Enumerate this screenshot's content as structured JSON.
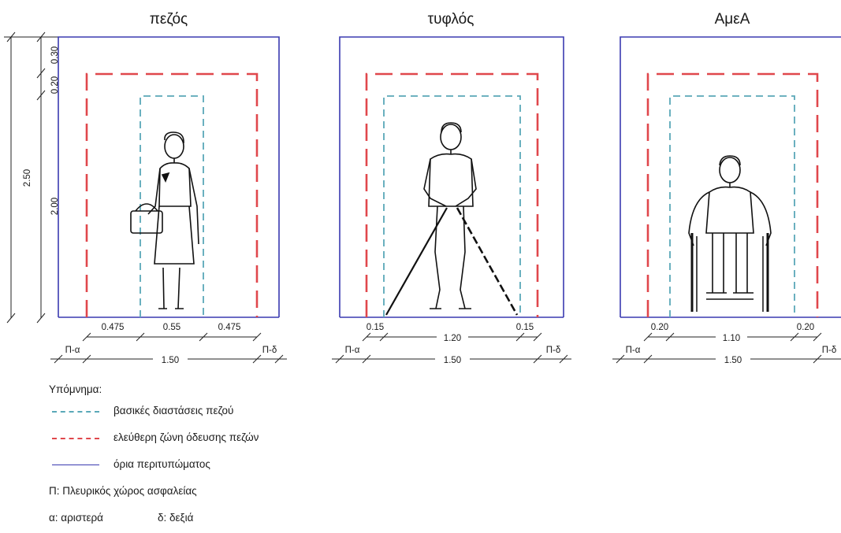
{
  "panels": [
    {
      "title": "πεζός",
      "upper_dims": [
        "0.475",
        "0.55",
        "0.475"
      ],
      "lower_left": "Π-α",
      "lower_total": "1.50",
      "lower_right": "Π-δ"
    },
    {
      "title": "τυφλός",
      "upper_dims": [
        "0.15",
        "1.20",
        "0.15"
      ],
      "lower_left": "Π-α",
      "lower_total": "1.50",
      "lower_right": "Π-δ"
    },
    {
      "title": "ΑμεΑ",
      "upper_dims": [
        "0.20",
        "1.10",
        "0.20"
      ],
      "lower_left": "Π-α",
      "lower_total": "1.50",
      "lower_right": "Π-δ"
    }
  ],
  "vertical_dims": {
    "outer_total": "2.50",
    "top_gap": "0.30",
    "mid_gap": "0.20",
    "inner_height": "2.00"
  },
  "legend": {
    "heading": "Υπόμνημα:",
    "items": [
      {
        "label": "βασικές διαστάσεις πεζού",
        "style": "dashed",
        "color": "#5aa8b8"
      },
      {
        "label": "ελεύθερη ζώνη όδευσης πεζών",
        "style": "dashed",
        "color": "#e0474c"
      },
      {
        "label": "όρια περιτυπώματος",
        "style": "solid",
        "color": "#3a3ab0"
      }
    ],
    "note_p": "Π: Πλευρικός χώρος ασφαλείας",
    "note_a": "α: αριστερά",
    "note_d": "δ: δεξιά"
  },
  "colors": {
    "basic": "#5aa8b8",
    "free": "#e0474c",
    "boundary": "#3a3ab0"
  }
}
